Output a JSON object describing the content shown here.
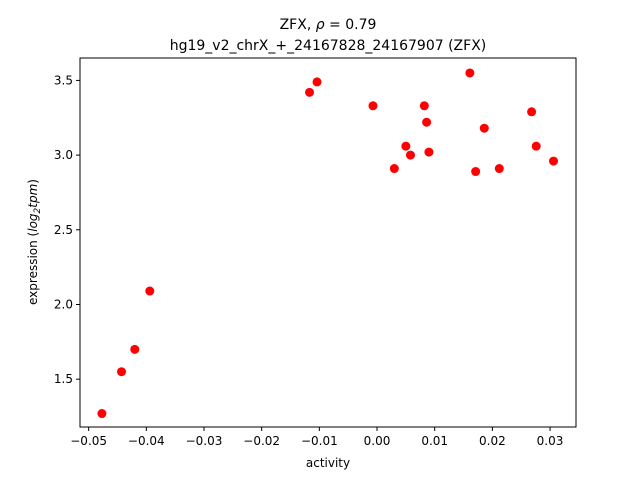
{
  "chart_data": {
    "type": "scatter",
    "title_line1_prefix": "ZFX, ",
    "title_line1_symbol": "ρ",
    "title_line1_suffix": " = 0.79",
    "title_line2": "hg19_v2_chrX_+_24167828_24167907 (ZFX)",
    "xlabel": "activity",
    "ylabel_prefix": "expression (",
    "ylabel_math": "log",
    "ylabel_sub": "2",
    "ylabel_math2": "tpm",
    "ylabel_suffix": ")",
    "xlim": [
      -0.0515,
      0.0345
    ],
    "ylim": [
      1.18,
      3.65
    ],
    "xticks": [
      -0.05,
      -0.04,
      -0.03,
      -0.02,
      -0.01,
      0.0,
      0.01,
      0.02,
      0.03
    ],
    "xtick_labels": [
      "−0.05",
      "−0.04",
      "−0.03",
      "−0.02",
      "−0.01",
      "0.00",
      "0.01",
      "0.02",
      "0.03"
    ],
    "yticks": [
      1.5,
      2.0,
      2.5,
      3.0,
      3.5
    ],
    "ytick_labels": [
      "1.5",
      "2.0",
      "2.5",
      "3.0",
      "3.5"
    ],
    "grid": false,
    "marker_color": "#ff0000",
    "points": [
      {
        "x": -0.0477,
        "y": 1.27
      },
      {
        "x": -0.0443,
        "y": 1.55
      },
      {
        "x": -0.042,
        "y": 1.7
      },
      {
        "x": -0.0394,
        "y": 2.09
      },
      {
        "x": -0.0117,
        "y": 3.42
      },
      {
        "x": -0.0104,
        "y": 3.49
      },
      {
        "x": -0.0007,
        "y": 3.33
      },
      {
        "x": 0.003,
        "y": 2.91
      },
      {
        "x": 0.005,
        "y": 3.06
      },
      {
        "x": 0.0058,
        "y": 3.0
      },
      {
        "x": 0.0082,
        "y": 3.33
      },
      {
        "x": 0.0086,
        "y": 3.22
      },
      {
        "x": 0.009,
        "y": 3.02
      },
      {
        "x": 0.0161,
        "y": 3.55
      },
      {
        "x": 0.0171,
        "y": 2.89
      },
      {
        "x": 0.0186,
        "y": 3.18
      },
      {
        "x": 0.0212,
        "y": 2.91
      },
      {
        "x": 0.0268,
        "y": 3.29
      },
      {
        "x": 0.0276,
        "y": 3.06
      },
      {
        "x": 0.0306,
        "y": 2.96
      }
    ]
  }
}
